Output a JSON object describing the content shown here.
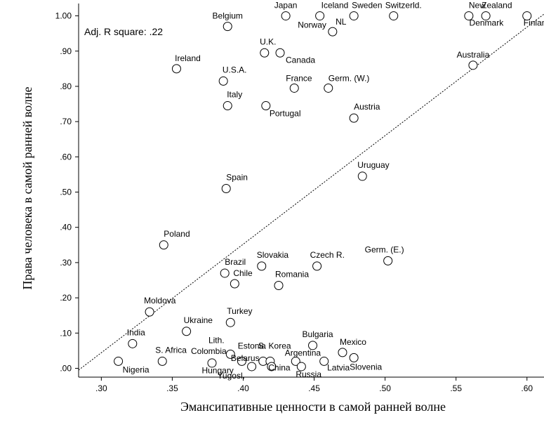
{
  "chart_data": {
    "type": "scatter",
    "xlabel": "Эмансипативные ценности в самой ранней волне",
    "ylabel": "Права человека в самой ранней волне",
    "annotation": "Adj. R square: .22",
    "xlim": [
      0.284,
      0.612
    ],
    "ylim": [
      -0.025,
      1.035
    ],
    "x_ticks": [
      ".30",
      ".35",
      ".40",
      ".45",
      ".50",
      ".55",
      ".60"
    ],
    "y_ticks": [
      ".00",
      ".10",
      ".20",
      ".30",
      ".40",
      ".50",
      ".60",
      ".70",
      ".80",
      ".90",
      "1.00"
    ],
    "grid": false,
    "regression_line": {
      "x": [
        0.284,
        0.612
      ],
      "y": [
        -0.005,
        1.005
      ],
      "style": "dotted"
    },
    "points": [
      {
        "label": "Japan",
        "x": 0.43,
        "y": 1.0
      },
      {
        "label": "Iceland",
        "x": 0.454,
        "y": 1.0
      },
      {
        "label": "Sweden",
        "x": 0.478,
        "y": 1.0
      },
      {
        "label": "Switzerld.",
        "x": 0.506,
        "y": 1.0
      },
      {
        "label": "New",
        "x": 0.559,
        "y": 1.0
      },
      {
        "label": "Zealand",
        "x": 0.571,
        "y": 1.0
      },
      {
        "label": "Finland",
        "x": 0.6,
        "y": 1.0
      },
      {
        "label": "Denmark",
        "x": 0.45,
        "y": 1.0
      },
      {
        "label": "Belgium",
        "x": 0.389,
        "y": 0.97
      },
      {
        "label": "Norway",
        "x": 0.45,
        "y": 1.0
      },
      {
        "label": "NL",
        "x": 0.463,
        "y": 0.955
      },
      {
        "label": "U.K.",
        "x": 0.415,
        "y": 0.895
      },
      {
        "label": "Canada",
        "x": 0.426,
        "y": 0.895
      },
      {
        "label": "Australia",
        "x": 0.562,
        "y": 0.86
      },
      {
        "label": "Ireland",
        "x": 0.353,
        "y": 0.85
      },
      {
        "label": "U.S.A.",
        "x": 0.386,
        "y": 0.815
      },
      {
        "label": "France",
        "x": 0.436,
        "y": 0.795
      },
      {
        "label": "Germ. (W.)",
        "x": 0.46,
        "y": 0.795
      },
      {
        "label": "Italy",
        "x": 0.389,
        "y": 0.745
      },
      {
        "label": "Portugal",
        "x": 0.416,
        "y": 0.745
      },
      {
        "label": "Austria",
        "x": 0.478,
        "y": 0.71
      },
      {
        "label": "Uruguay",
        "x": 0.484,
        "y": 0.545
      },
      {
        "label": "Spain",
        "x": 0.388,
        "y": 0.51
      },
      {
        "label": "Poland",
        "x": 0.344,
        "y": 0.35
      },
      {
        "label": "Germ. (E.)",
        "x": 0.502,
        "y": 0.305
      },
      {
        "label": "Czech R.",
        "x": 0.452,
        "y": 0.29
      },
      {
        "label": "Slovakia",
        "x": 0.413,
        "y": 0.29
      },
      {
        "label": "Brazil",
        "x": 0.387,
        "y": 0.27
      },
      {
        "label": "Chile",
        "x": 0.394,
        "y": 0.24
      },
      {
        "label": "Romania",
        "x": 0.425,
        "y": 0.235
      },
      {
        "label": "Moldova",
        "x": 0.334,
        "y": 0.16
      },
      {
        "label": "Turkey",
        "x": 0.391,
        "y": 0.13
      },
      {
        "label": "Ukraine",
        "x": 0.36,
        "y": 0.105
      },
      {
        "label": "India",
        "x": 0.322,
        "y": 0.07
      },
      {
        "label": "Bulgaria",
        "x": 0.449,
        "y": 0.065
      },
      {
        "label": "Mexico",
        "x": 0.47,
        "y": 0.045
      },
      {
        "label": "Lith.",
        "x": 0.391,
        "y": 0.04
      },
      {
        "label": "Nigeria",
        "x": 0.312,
        "y": 0.02
      },
      {
        "label": "S. Africa",
        "x": 0.343,
        "y": 0.02
      },
      {
        "label": "Colombia",
        "x": 0.378,
        "y": 0.015
      },
      {
        "label": "Hungary",
        "x": 0.399,
        "y": 0.02
      },
      {
        "label": "Yugosl.",
        "x": 0.406,
        "y": 0.005
      },
      {
        "label": "Estonia",
        "x": 0.414,
        "y": 0.02
      },
      {
        "label": "S. Korea",
        "x": 0.419,
        "y": 0.02
      },
      {
        "label": "Belarus",
        "x": 0.42,
        "y": 0.005
      },
      {
        "label": "China",
        "x": 0.437,
        "y": 0.02
      },
      {
        "label": "Russia",
        "x": 0.441,
        "y": 0.005
      },
      {
        "label": "Argentina",
        "x": 0.457,
        "y": 0.02
      },
      {
        "label": "Latvia",
        "x": 0.478,
        "y": 0.03
      },
      {
        "label": "Slovenia",
        "x": 0.478,
        "y": 0.03
      }
    ]
  }
}
